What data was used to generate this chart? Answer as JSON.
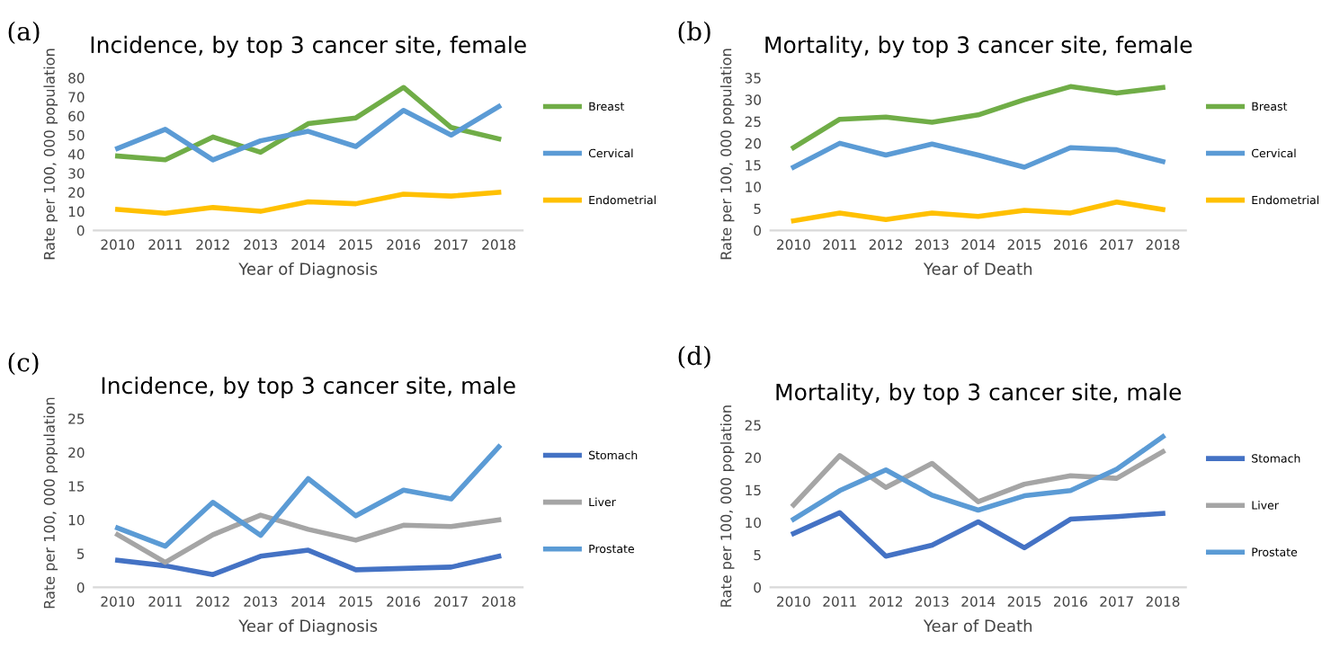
{
  "chart_data": [
    {
      "type": "line",
      "title": "Incidence, by top 3 cancer site, female",
      "xlabel": "Year of Diagnosis",
      "ylabel": "Rate per 100, 000 population",
      "annotations": [
        "(a)"
      ],
      "categories": [
        "2010",
        "2011",
        "2012",
        "2013",
        "2014",
        "2015",
        "2016",
        "2017",
        "2018"
      ],
      "ylim": [
        0,
        80
      ],
      "yticks": [
        0,
        10,
        20,
        30,
        40,
        50,
        60,
        70,
        80
      ],
      "grid": false,
      "legend": "right",
      "marker": "none",
      "line_style": "solid",
      "series": [
        {
          "name": "Breast",
          "color": "#70ad47",
          "values": [
            39,
            37,
            49,
            41,
            56,
            59,
            75,
            54,
            48
          ]
        },
        {
          "name": "Cervical",
          "color": "#5b9bd5",
          "values": [
            43,
            53,
            37,
            47,
            52,
            44,
            63,
            50,
            65
          ]
        },
        {
          "name": "Endometrial",
          "color": "#ffc000",
          "values": [
            11,
            9,
            12,
            10,
            15,
            14,
            19,
            18,
            20
          ]
        }
      ]
    },
    {
      "type": "line",
      "title": "Mortality, by top 3 cancer site, female",
      "xlabel": "Year of Death",
      "ylabel": "Rate per 100, 000 population",
      "annotations": [
        "(b)"
      ],
      "categories": [
        "2010",
        "2011",
        "2012",
        "2013",
        "2014",
        "2015",
        "2016",
        "2017",
        "2018"
      ],
      "ylim": [
        0,
        35
      ],
      "yticks": [
        0,
        5,
        10,
        15,
        20,
        25,
        30,
        35
      ],
      "grid": false,
      "legend": "right",
      "marker": "none",
      "line_style": "solid",
      "series": [
        {
          "name": "Breast",
          "color": "#70ad47",
          "values": [
            19,
            25.5,
            26,
            24.8,
            26.5,
            30,
            33,
            31.5,
            32.8
          ]
        },
        {
          "name": "Cervical",
          "color": "#5b9bd5",
          "values": [
            14.5,
            20,
            17.3,
            19.8,
            17.3,
            14.5,
            19,
            18.5,
            15.8
          ]
        },
        {
          "name": "Endometrial",
          "color": "#ffc000",
          "values": [
            2.2,
            4,
            2.5,
            4,
            3.2,
            4.6,
            4,
            6.5,
            4.8
          ]
        }
      ]
    },
    {
      "type": "line",
      "title": "Incidence, by top 3 cancer site, male",
      "xlabel": "Year of Diagnosis",
      "ylabel": "Rate per 100, 000 population",
      "annotations": [
        "(c)"
      ],
      "categories": [
        "2010",
        "2011",
        "2012",
        "2013",
        "2014",
        "2015",
        "2016",
        "2017",
        "2018"
      ],
      "ylim": [
        0,
        25
      ],
      "yticks": [
        0,
        5,
        10,
        15,
        20,
        25
      ],
      "grid": false,
      "legend": "right",
      "marker": "none",
      "line_style": "solid",
      "series": [
        {
          "name": "Stomach",
          "color": "#4472c4",
          "values": [
            4,
            3.2,
            1.9,
            4.6,
            5.5,
            2.6,
            2.8,
            3,
            4.6
          ]
        },
        {
          "name": "Liver",
          "color": "#a5a5a5",
          "values": [
            7.8,
            3.7,
            7.8,
            10.7,
            8.6,
            7,
            9.2,
            9,
            10
          ]
        },
        {
          "name": "Prostate",
          "color": "#5b9bd5",
          "values": [
            8.8,
            6.1,
            12.6,
            7.7,
            16.1,
            10.6,
            14.4,
            13.1,
            20.8
          ]
        }
      ]
    },
    {
      "type": "line",
      "title": "Mortality, by top 3 cancer site, male",
      "xlabel": "Year of Death",
      "ylabel": "Rate per 100, 000 poplation",
      "annotations": [
        "(d)"
      ],
      "categories": [
        "2010",
        "2011",
        "2012",
        "2013",
        "2014",
        "2015",
        "2016",
        "2017",
        "2018"
      ],
      "ylim": [
        0,
        25
      ],
      "yticks": [
        0,
        5,
        10,
        15,
        20,
        25
      ],
      "grid": false,
      "legend": "right",
      "marker": "none",
      "line_style": "solid",
      "series": [
        {
          "name": "Stomach",
          "color": "#4472c4",
          "values": [
            8.3,
            11.5,
            4.8,
            6.5,
            10.1,
            6.1,
            10.5,
            10.9,
            11.4
          ]
        },
        {
          "name": "Liver",
          "color": "#a5a5a5",
          "values": [
            12.7,
            20.3,
            15.4,
            19.1,
            13.2,
            15.9,
            17.2,
            16.8,
            20.9
          ]
        },
        {
          "name": "Prostate",
          "color": "#5b9bd5",
          "values": [
            10.5,
            14.9,
            18.1,
            14.2,
            11.9,
            14.1,
            14.9,
            18.2,
            23.2
          ]
        }
      ]
    }
  ]
}
